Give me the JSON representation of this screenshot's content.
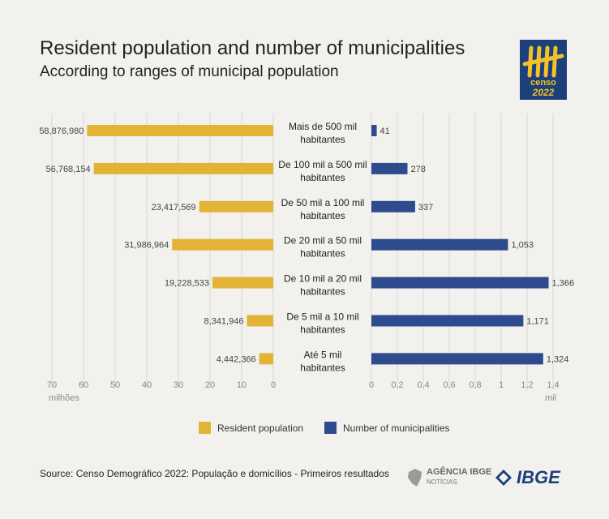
{
  "title": "Resident population and number of municipalities",
  "subtitle": "According to ranges of municipal population",
  "logo": {
    "icon": "census-tally-icon",
    "line1": "censo",
    "line2": "2022",
    "bg": "#1d3f7a",
    "fg": "#f0c22a"
  },
  "legend": {
    "population": "Resident population",
    "municipalities": "Number of municipalities"
  },
  "source": "Source: Censo Demográfico 2022: População e domicílios - Primeiros resultados",
  "agencia": {
    "name": "AGÊNCIA IBGE",
    "sub": "NOTÍCIAS"
  },
  "ibge": "IBGE",
  "colors": {
    "population": "#e3b336",
    "municipalities": "#2e4b8e",
    "grid": "#d6d6d2",
    "text": "#444444",
    "muted": "#888888"
  },
  "chart_data": [
    {
      "type": "bar",
      "orientation": "horizontal",
      "categories": [
        "Mais de 500 mil habitantes",
        "De 100 mil a 500 mil habitantes",
        "De 50 mil a 100 mil habitantes",
        "De 20 mil a 50 mil habitantes",
        "De 10 mil a 20 mil habitantes",
        "De 5 mil a 10 mil habitantes",
        "Até 5 mil habitantes"
      ],
      "category_lines": [
        [
          "Mais de 500 mil",
          "habitantes"
        ],
        [
          "De 100 mil a 500 mil",
          "habitantes"
        ],
        [
          "De 50 mil a 100 mil",
          "habitantes"
        ],
        [
          "De 20 mil a 50 mil",
          "habitantes"
        ],
        [
          "De 10 mil a 20 mil",
          "habitantes"
        ],
        [
          "De 5 mil a 10 mil",
          "habitantes"
        ],
        [
          "Até 5 mil",
          "habitantes"
        ]
      ],
      "series": [
        {
          "name": "Resident population",
          "values": [
            58876980,
            56768154,
            23417569,
            31986964,
            19228533,
            8341946,
            4442366
          ]
        }
      ],
      "value_labels": [
        "58,876,980",
        "56,768,154",
        "23,417,569",
        "31,986,964",
        "19,228,533",
        "8,341,946",
        "4,442,366"
      ],
      "xlim": [
        0,
        70
      ],
      "xticks": [
        "70",
        "60",
        "50",
        "40",
        "30",
        "20",
        "10",
        "0"
      ],
      "xlabel": "milhões",
      "grid": true,
      "reversed": true
    },
    {
      "type": "bar",
      "orientation": "horizontal",
      "categories": [
        "Mais de 500 mil habitantes",
        "De 100 mil a 500 mil habitantes",
        "De 50 mil a 100 mil habitantes",
        "De 20 mil a 50 mil habitantes",
        "De 10 mil a 20 mil habitantes",
        "De 5 mil a 10 mil habitantes",
        "Até 5 mil habitantes"
      ],
      "series": [
        {
          "name": "Number of municipalities",
          "values": [
            41,
            278,
            337,
            1053,
            1366,
            1171,
            1324
          ]
        }
      ],
      "value_labels": [
        "41",
        "278",
        "337",
        "1,053",
        "1,366",
        "1,171",
        "1,324"
      ],
      "xlim": [
        0,
        1.4
      ],
      "xticks": [
        "0",
        "0,2",
        "0,4",
        "0,6",
        "0,8",
        "1",
        "1,2",
        "1,4"
      ],
      "xlabel": "mil",
      "grid": true,
      "legend_position": "bottom"
    }
  ]
}
